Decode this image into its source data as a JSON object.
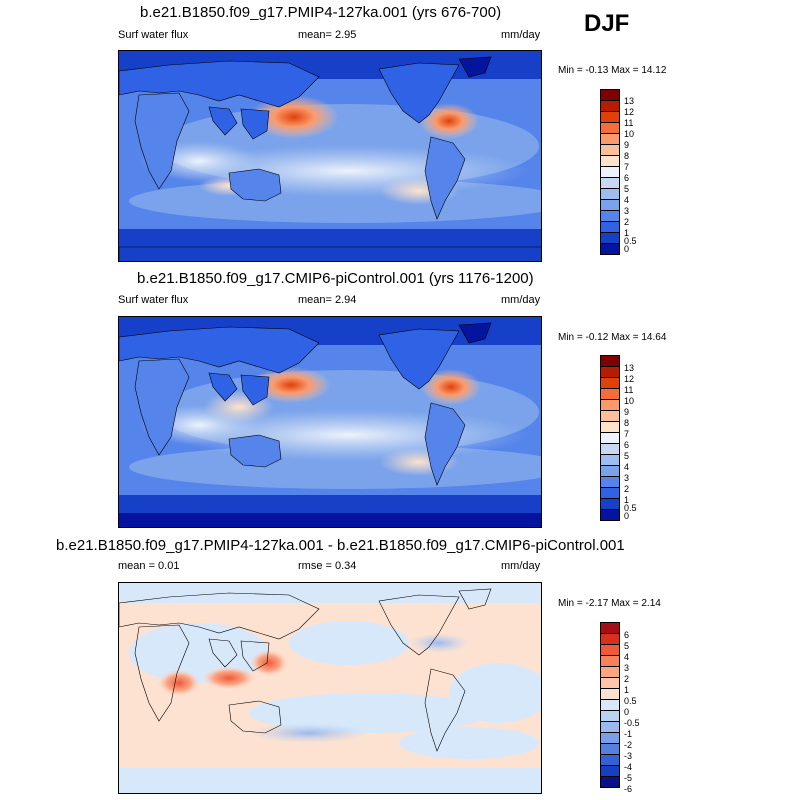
{
  "season": "DJF",
  "panels": [
    {
      "title": "b.e21.B1850.f09_g17.PMIP4-127ka.001 (yrs 676-700)",
      "left_label": "Surf water flux",
      "center_label": "mean=   2.95",
      "right_label": "mm/day",
      "minmax": "Min =  -0.13 Max =  14.12",
      "colorbar_labels": [
        "13",
        "12",
        "11",
        "10",
        "9",
        "8",
        "7",
        "6",
        "5",
        "4",
        "3",
        "2",
        "1",
        "0.5",
        "0"
      ],
      "colorbar_colors": [
        "#800000",
        "#b71c00",
        "#e0400a",
        "#f46d3a",
        "#fb9a6c",
        "#fcbf9e",
        "#ffe2cc",
        "#eef3fb",
        "#c6d8f3",
        "#9dbeee",
        "#7aa3eb",
        "#5584ea",
        "#2f62e5",
        "#1740c9",
        "#04149e"
      ]
    },
    {
      "title": "b.e21.B1850.f09_g17.CMIP6-piControl.001 (yrs 1176-1200)",
      "left_label": "Surf water flux",
      "center_label": "mean=   2.94",
      "right_label": "mm/day",
      "minmax": "Min =  -0.12 Max =  14.64",
      "colorbar_labels": [
        "13",
        "12",
        "11",
        "10",
        "9",
        "8",
        "7",
        "6",
        "5",
        "4",
        "3",
        "2",
        "1",
        "0.5",
        "0"
      ],
      "colorbar_colors": [
        "#800000",
        "#b71c00",
        "#e0400a",
        "#f46d3a",
        "#fb9a6c",
        "#fcbf9e",
        "#ffe2cc",
        "#eef3fb",
        "#c6d8f3",
        "#9dbeee",
        "#7aa3eb",
        "#5584ea",
        "#2f62e5",
        "#1740c9",
        "#04149e"
      ]
    },
    {
      "title": "b.e21.B1850.f09_g17.PMIP4-127ka.001 - b.e21.B1850.f09_g17.CMIP6-piControl.001",
      "left_label": "mean =   0.01",
      "center_label": "rmse =   0.34",
      "right_label": "mm/day",
      "minmax": "Min =  -2.17 Max =   2.14",
      "colorbar_labels": [
        "6",
        "5",
        "4",
        "3",
        "2",
        "1",
        "0.5",
        "0",
        "-0.5",
        "-1",
        "-2",
        "-3",
        "-4",
        "-5",
        "-6"
      ],
      "colorbar_colors": [
        "#a50f15",
        "#d7301f",
        "#ef5a3a",
        "#f6815c",
        "#fba583",
        "#fdc6ab",
        "#fde2d2",
        "#d8e8fb",
        "#bcd2f3",
        "#9ab9ee",
        "#7a9ee8",
        "#5580e0",
        "#3560d6",
        "#1740c0",
        "#08108a"
      ]
    }
  ]
}
